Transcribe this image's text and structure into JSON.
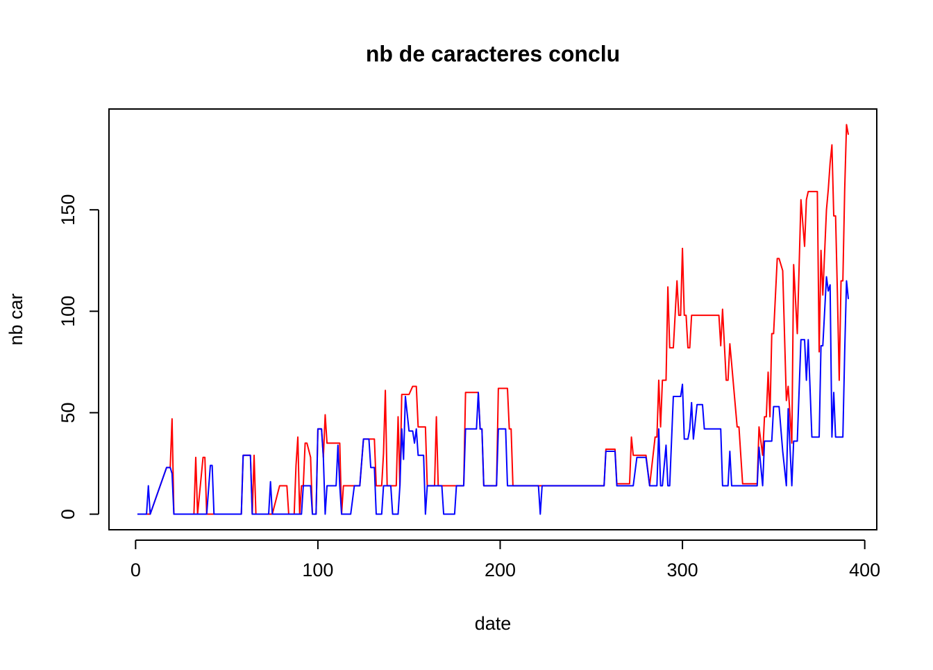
{
  "chart_data": {
    "type": "line",
    "title": "nb de caracteres conclu",
    "x_label": "date",
    "y_label": "nb car",
    "x": [
      1,
      6,
      7,
      8,
      17,
      19,
      20,
      21,
      32,
      33,
      34,
      37,
      38,
      39,
      41,
      42,
      43,
      58,
      59,
      63,
      64,
      65,
      66,
      73,
      74,
      75,
      79,
      83,
      84,
      87,
      88,
      89,
      90,
      91,
      92,
      93,
      94,
      96,
      97,
      99,
      100,
      102,
      103,
      104,
      105,
      110,
      111,
      112,
      113,
      114,
      118,
      120,
      123,
      125,
      128,
      129,
      131,
      132,
      135,
      136,
      137,
      138,
      140,
      141,
      143,
      144,
      145,
      146,
      147,
      148,
      150,
      152,
      153,
      154,
      155,
      158,
      159,
      160,
      164,
      165,
      166,
      168,
      169,
      175,
      176,
      180,
      181,
      187,
      188,
      189,
      190,
      191,
      198,
      199,
      203,
      204,
      205,
      206,
      207,
      221,
      222,
      223,
      257,
      258,
      263,
      264,
      271,
      272,
      273,
      275,
      280,
      282,
      285,
      286,
      287,
      288,
      289,
      291,
      292,
      293,
      295,
      297,
      298,
      299,
      300,
      301,
      302,
      303,
      304,
      305,
      306,
      308,
      311,
      312,
      320,
      321,
      322,
      324,
      325,
      326,
      327,
      330,
      331,
      333,
      340,
      341,
      342,
      344,
      345,
      346,
      347,
      348,
      349,
      350,
      352,
      353,
      355,
      357,
      358,
      360,
      361,
      363,
      365,
      367,
      368,
      369,
      371,
      374,
      375,
      376,
      377,
      379,
      380,
      381,
      382,
      383,
      384,
      385,
      386,
      387,
      388,
      389,
      390,
      391
    ],
    "series": [
      {
        "color": "#ff0000",
        "values": [
          0,
          0,
          0,
          0,
          23,
          23,
          47,
          0,
          0,
          28,
          0,
          28,
          28,
          0,
          0,
          0,
          0,
          0,
          29,
          29,
          0,
          29,
          0,
          0,
          0,
          0,
          14,
          14,
          0,
          0,
          24,
          38,
          0,
          14,
          14,
          35,
          35,
          28,
          0,
          0,
          42,
          42,
          28,
          49,
          35,
          35,
          35,
          35,
          0,
          14,
          14,
          14,
          14,
          37,
          37,
          37,
          37,
          14,
          14,
          30,
          61,
          14,
          14,
          14,
          14,
          48,
          14,
          59,
          59,
          59,
          59,
          63,
          63,
          63,
          43,
          43,
          43,
          14,
          14,
          48,
          14,
          14,
          14,
          14,
          14,
          14,
          60,
          60,
          60,
          42,
          42,
          14,
          14,
          62,
          62,
          62,
          42,
          42,
          14,
          14,
          14,
          14,
          14,
          32,
          32,
          15,
          15,
          38,
          29,
          29,
          29,
          14,
          38,
          38,
          66,
          43,
          66,
          66,
          112,
          82,
          82,
          115,
          98,
          98,
          131,
          98,
          98,
          82,
          82,
          98,
          98,
          98,
          98,
          98,
          98,
          83,
          101,
          66,
          66,
          84,
          74,
          43,
          43,
          15,
          15,
          15,
          43,
          29,
          48,
          48,
          70,
          48,
          89,
          89,
          126,
          126,
          120,
          56,
          63,
          35,
          123,
          89,
          155,
          132,
          155,
          159,
          159,
          159,
          80,
          130,
          108,
          150,
          160,
          173,
          182,
          147,
          147,
          109,
          66,
          115,
          115,
          160,
          192,
          187
        ]
      },
      {
        "color": "#0000ff",
        "values": [
          0,
          0,
          14,
          0,
          23,
          23,
          20,
          0,
          0,
          0,
          0,
          0,
          0,
          0,
          24,
          24,
          0,
          0,
          29,
          29,
          0,
          0,
          0,
          0,
          16,
          0,
          0,
          0,
          0,
          0,
          0,
          0,
          0,
          0,
          14,
          14,
          14,
          14,
          0,
          0,
          42,
          42,
          28,
          0,
          14,
          14,
          34,
          14,
          0,
          0,
          0,
          14,
          14,
          37,
          37,
          23,
          23,
          0,
          0,
          14,
          14,
          14,
          14,
          0,
          0,
          0,
          14,
          42,
          27,
          58,
          41,
          41,
          35,
          42,
          29,
          29,
          0,
          14,
          14,
          14,
          14,
          14,
          0,
          0,
          14,
          14,
          42,
          42,
          60,
          42,
          42,
          14,
          14,
          42,
          42,
          14,
          14,
          14,
          14,
          14,
          0,
          14,
          14,
          31,
          31,
          14,
          14,
          14,
          14,
          28,
          28,
          14,
          14,
          14,
          42,
          14,
          14,
          34,
          14,
          14,
          58,
          58,
          58,
          58,
          64,
          37,
          37,
          37,
          42,
          55,
          37,
          54,
          54,
          42,
          42,
          42,
          14,
          14,
          14,
          31,
          14,
          14,
          14,
          14,
          14,
          14,
          33,
          14,
          36,
          36,
          36,
          36,
          36,
          53,
          53,
          53,
          31,
          14,
          52,
          14,
          36,
          36,
          86,
          86,
          66,
          86,
          38,
          38,
          38,
          83,
          83,
          117,
          110,
          113,
          38,
          60,
          38,
          38,
          38,
          38,
          38,
          80,
          115,
          106
        ]
      }
    ],
    "xlim": [
      -14.6,
      406.6
    ],
    "ylim": [
      -7.68,
      199.68
    ],
    "xticks": [
      0,
      100,
      200,
      300,
      400
    ],
    "yticks": [
      0,
      50,
      100,
      150
    ]
  }
}
